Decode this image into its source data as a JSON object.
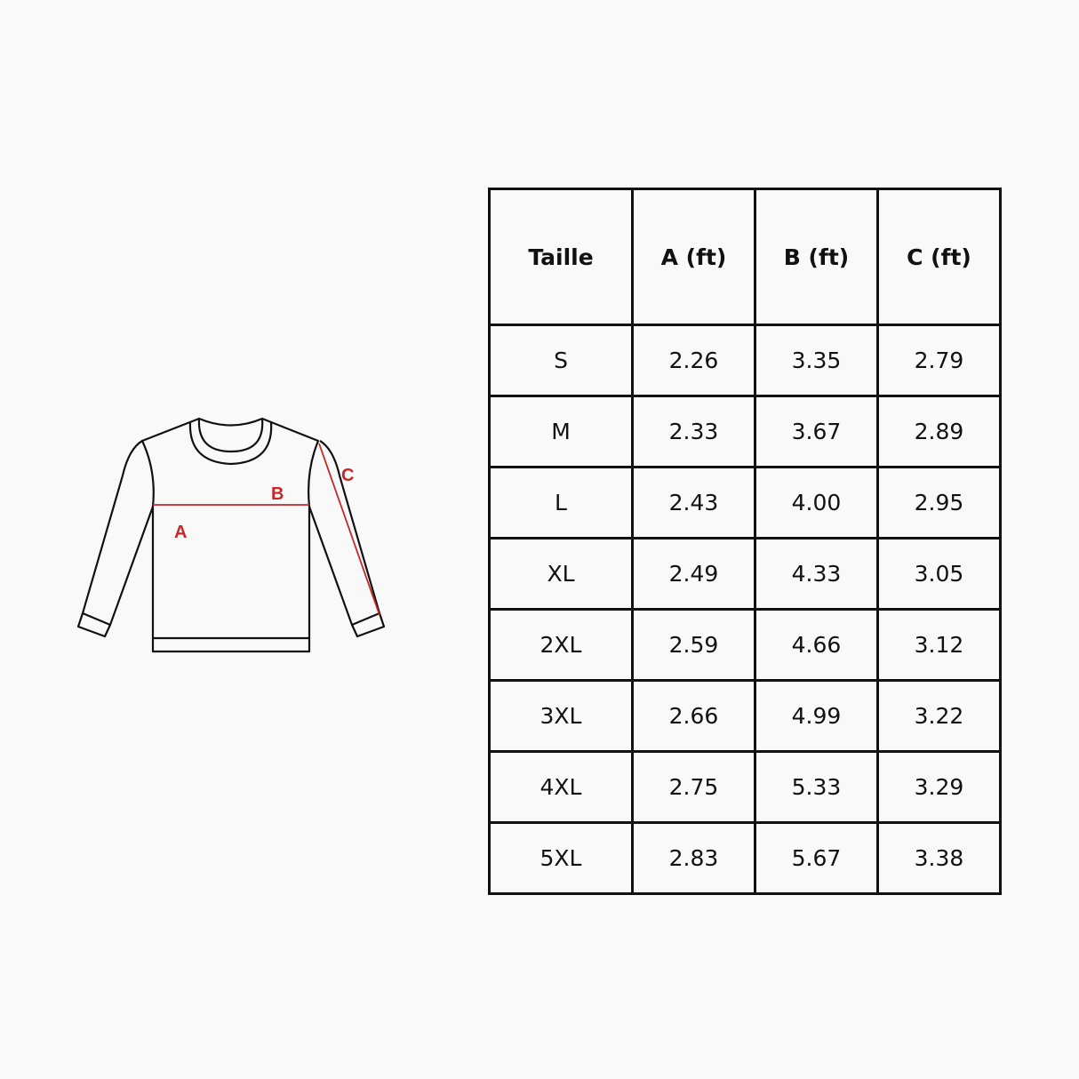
{
  "diagram": {
    "labels": {
      "a": "A",
      "b": "B",
      "c": "C"
    },
    "measure_color": "#c62828",
    "outline_color": "#111111"
  },
  "table": {
    "headers": [
      "Taille",
      "A (ft)",
      "B (ft)",
      "C (ft)"
    ],
    "rows": [
      [
        "S",
        "2.26",
        "3.35",
        "2.79"
      ],
      [
        "M",
        "2.33",
        "3.67",
        "2.89"
      ],
      [
        "L",
        "2.43",
        "4.00",
        "2.95"
      ],
      [
        "XL",
        "2.49",
        "4.33",
        "3.05"
      ],
      [
        "2XL",
        "2.59",
        "4.66",
        "3.12"
      ],
      [
        "3XL",
        "2.66",
        "4.99",
        "3.22"
      ],
      [
        "4XL",
        "2.75",
        "5.33",
        "3.29"
      ],
      [
        "5XL",
        "2.83",
        "5.67",
        "3.38"
      ]
    ]
  }
}
